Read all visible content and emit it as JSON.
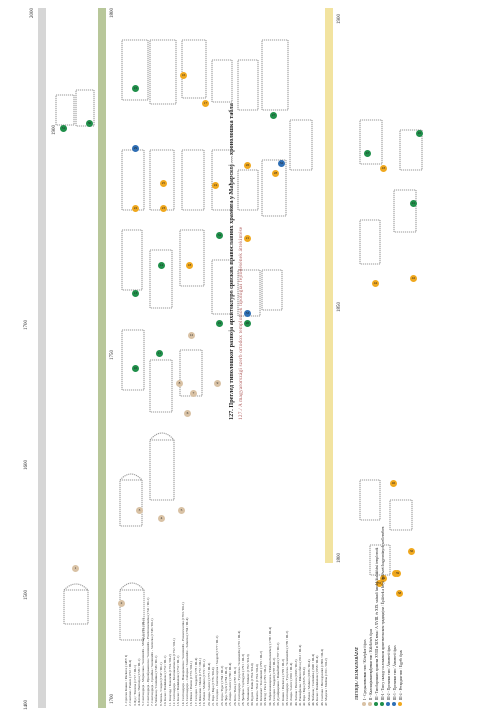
{
  "title": "127. Преглед типолошког развоја архитектуре српских православних храмова у Мађарској — хронолошка табла",
  "subtitle": "127./ A magyarországi szerb ortodox templomok típológiai fejlődésének áttekintése",
  "colors": {
    "gray_bar": "#d6d6d6",
    "green_bar": "#b8c79a",
    "yellow_bar": "#f2e3a0",
    "dot_beige": "#d9c2a5",
    "dot_green": "#1f8f4a",
    "dot_blue": "#2f6fb5",
    "dot_orange": "#f0a81e"
  },
  "axis_left": {
    "ticks": [
      "1400",
      "1500",
      "1600",
      "1700"
    ]
  },
  "axis_top": {
    "ticks": [
      "2000",
      "1900"
    ]
  },
  "axis_green": {
    "ticks": [
      "1700",
      "1750",
      "1800"
    ]
  },
  "axis_right": {
    "ticks": [
      "1800",
      "1850",
      "1900"
    ]
  },
  "legend": {
    "heading": "ЛЕГЕНДА / JELMAGYARÁZAT",
    "items": [
      {
        "color_key": "dot_beige",
        "label": "I - Средњовековни тип / Középkori típus"
      },
      {
        "color_key": "dot_beige",
        "label": "II - Калонијалнитврђевни тип / Kálóközés típus"
      },
      {
        "color_key": "dot_green",
        "label": "III - Тип барокних храмова XVIII и XIX века / A XVIII. és XIX. századi barokk kialakítású templomok"
      },
      {
        "color_key": "dot_green",
        "label": "III-1 - Тип у складу са локалном архитектонском традицијом / Épületek a helyi építészeti hagyományok szellemében"
      },
      {
        "color_key": "dot_blue",
        "label": "III-2 - Прелазни тип / Átmeneti típus"
      },
      {
        "color_key": "dot_blue",
        "label": "III-3 - Прелазни тип / Átmeneti típus"
      },
      {
        "color_key": "dot_orange",
        "label": "III-4 - Ретардни тип / Egyéb típus"
      }
    ]
  },
  "church_list": [
    "1. Српски Ковин / Ráckeve (1487/ I)",
    "2. Сантово / Pomáz (1722 / III-4)",
    "3. Буд / Tóváros (1717 / III-1)",
    "4. Батања / Battonya (1720 / III-1)",
    "5. Сентандреја - Мијаилова / Szentendre - Mihajl (1730 / III-1)",
    "6. Сентандреја - Преображенска / Szentendre - Preobrazsenszka (1741 / III-1)",
    "7. Сентандреја - Срнићка / Szentendre - Szrnicka (1746 / III-1)",
    "8. Чобанац / Csobánka (1746 / III-1)",
    "9. Чепељ / Csepel (1747 / III-1)",
    "10. Калаз / Budakalász (1752 / III-1)",
    "11. Коцсорд / Koszorúk (1754 / III-2)",
    "12. Сентандреја - Благовештенска (1752 / III-1)",
    "13. Калаз / Budakalász (1752 / III-1)",
    "14. Сентандреја - Пожаревачка / Szentendre - Pozsarevacska (1763 / III-1)",
    "15. Сентандреја - Саборна / Szentendre - Saborna (1764 / III-4)",
    "16. Помаз / Pomáz (1773 / III-1)",
    "17. Сегедин / Szeged (1778 / III-4)",
    "18. Шиклош / Siklós (1772 / III-1)",
    "19. Мохач / Mohács (1772 / III-1)",
    "20. Ловра / Lórév (1775 / III-4)",
    "21. Баја / Baja (1776 / III-4)",
    "22. Сегедин - Светоилијска / Szeged (1777 / III-2)",
    "23. Јегра / Eger (1784 / III-2)",
    "24. Ђер / Győr (1784 / III-2)",
    "25. Ловра / Lórév (1780 / III-4)",
    "26. Бата / Báta (1787 / III-1)",
    "27. Сентандреја - Тукулска / Szentendre (1791 / III-4)",
    "28. Ђенђеш / Gyöngyös (1791 / III-3)",
    "29. Мишколц / Miskolc (1792 / III-3)",
    "30. Будим / Buda (1794 / III-4)",
    "31. Пешта / Pest (1794 / III-4)",
    "32. Кечкемет / Kecskemét (1795 / III-2)",
    "33. Печуј / Pécs (1795 / III-2)",
    "34. Хођмезевашархељ / Hódmezővásárhely (1796 / III-4)",
    "35. Сегедин / Szeged (1797 / III-2)",
    "36. Дунађвароши / Dunaföldvár (1797 / III-2)",
    "37. Ковин / Ráckeve (1799 / III-2)",
    "38. Сентандреја - Тукулска / Szentendre (1799 / III-2)",
    "39. Ловра / Lórév (1801 / III-4)",
    "40. Хатван / Hatvan (1803 / III-3)",
    "41. Ракоцфалва / Rákóczifalva (1812 / III-4)",
    "42. Баја / Baja (1825 / III-4)",
    "43. Мохач / Mohács (1836 / III-4)",
    "44. Чобанац / Csobánka (1846 / III-4)",
    "45. Калаз / Budakalász (1858 / III-4)",
    "46. Сантово / Hercegszántó (1860 / III-4)",
    "47. Мадоча / Medina (1911 / III-2)"
  ],
  "markers": [
    {
      "n": "1",
      "c": "dot_beige"
    },
    {
      "n": "2",
      "c": "dot_beige"
    },
    {
      "n": "3",
      "c": "dot_beige"
    },
    {
      "n": "4",
      "c": "dot_beige"
    },
    {
      "n": "5",
      "c": "dot_beige"
    },
    {
      "n": "6",
      "c": "dot_beige"
    },
    {
      "n": "7",
      "c": "dot_beige"
    },
    {
      "n": "8",
      "c": "dot_beige"
    },
    {
      "n": "9",
      "c": "dot_beige"
    },
    {
      "n": "10",
      "c": "dot_green"
    },
    {
      "n": "11",
      "c": "dot_green"
    },
    {
      "n": "12",
      "c": "dot_beige"
    },
    {
      "n": "13",
      "c": "dot_green"
    },
    {
      "n": "14",
      "c": "dot_green"
    },
    {
      "n": "15",
      "c": "dot_green"
    },
    {
      "n": "16",
      "c": "dot_orange"
    },
    {
      "n": "17",
      "c": "dot_orange"
    },
    {
      "n": "18",
      "c": "dot_orange"
    },
    {
      "n": "19",
      "c": "dot_green"
    },
    {
      "n": "20",
      "c": "dot_green"
    },
    {
      "n": "21",
      "c": "dot_orange"
    },
    {
      "n": "22",
      "c": "dot_orange"
    },
    {
      "n": "23",
      "c": "dot_orange"
    },
    {
      "n": "24",
      "c": "dot_orange"
    },
    {
      "n": "25",
      "c": "dot_orange"
    },
    {
      "n": "26",
      "c": "dot_orange"
    },
    {
      "n": "27",
      "c": "dot_green"
    },
    {
      "n": "28",
      "c": "dot_orange"
    },
    {
      "n": "29",
      "c": "dot_blue"
    },
    {
      "n": "30",
      "c": "dot_green"
    },
    {
      "n": "31",
      "c": "dot_green"
    },
    {
      "n": "32",
      "c": "dot_blue"
    },
    {
      "n": "33",
      "c": "dot_blue"
    },
    {
      "n": "34",
      "c": "dot_green"
    },
    {
      "n": "35",
      "c": "dot_orange"
    },
    {
      "n": "36",
      "c": "dot_orange"
    },
    {
      "n": "37",
      "c": "dot_orange"
    },
    {
      "n": "38",
      "c": "dot_orange"
    },
    {
      "n": "39",
      "c": "dot_orange"
    },
    {
      "n": "40",
      "c": "dot_orange"
    },
    {
      "n": "41",
      "c": "dot_green"
    },
    {
      "n": "42",
      "c": "dot_orange"
    },
    {
      "n": "43",
      "c": "dot_orange"
    },
    {
      "n": "44",
      "c": "dot_orange"
    },
    {
      "n": "45",
      "c": "dot_green"
    },
    {
      "n": "46",
      "c": "dot_orange"
    },
    {
      "n": "47",
      "c": "dot_green"
    }
  ]
}
